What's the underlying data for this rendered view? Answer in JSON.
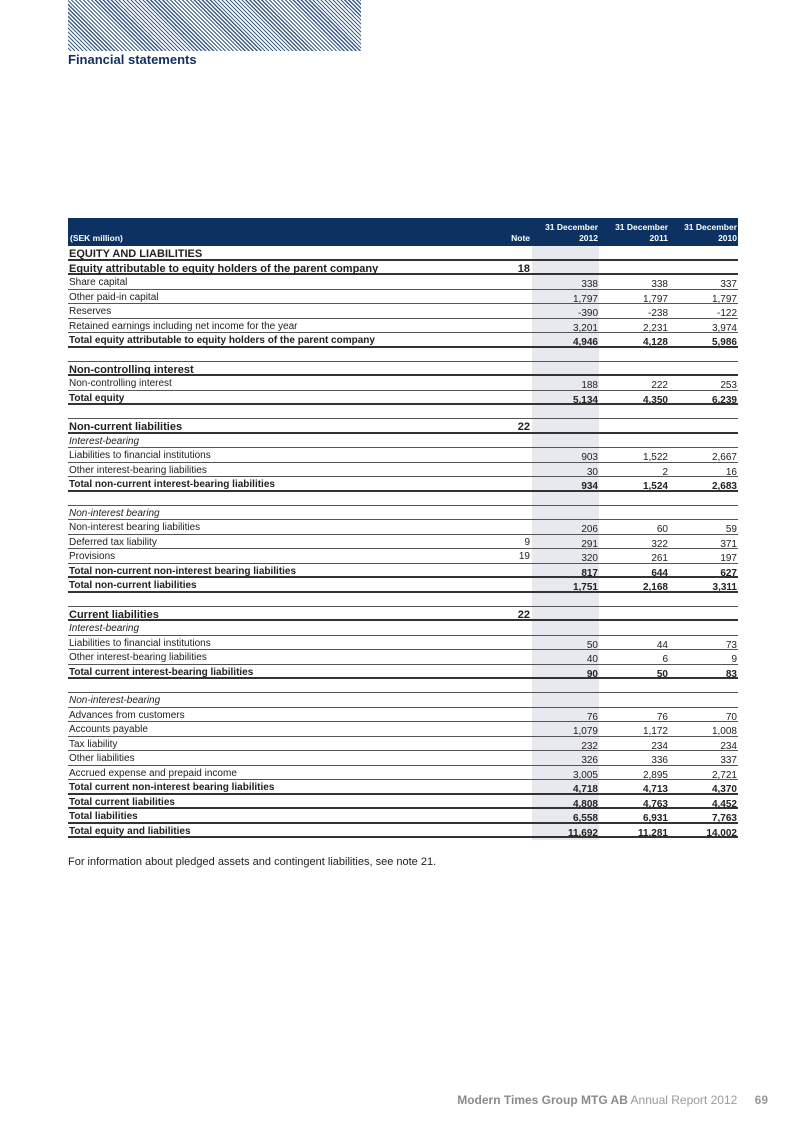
{
  "header": {
    "section_title": "Financial statements"
  },
  "table": {
    "columns": {
      "unit": "(SEK million)",
      "note": "Note",
      "c1_l1": "31 December",
      "c1_l2": "2012",
      "c2_l1": "31 December",
      "c2_l2": "2011",
      "c3_l1": "31 December",
      "c3_l2": "2010"
    },
    "rows": [
      {
        "type": "heading",
        "label": "EQUITY AND LIABILITIES",
        "note": "",
        "v": [
          "",
          "",
          ""
        ]
      },
      {
        "type": "heading",
        "label": "Equity attributable to equity holders of the parent company",
        "note": "18",
        "v": [
          "",
          "",
          ""
        ]
      },
      {
        "type": "normal",
        "label": "Share capital",
        "note": "",
        "v": [
          "338",
          "338",
          "337"
        ]
      },
      {
        "type": "normal",
        "label": "Other paid-in capital",
        "note": "",
        "v": [
          "1,797",
          "1,797",
          "1,797"
        ]
      },
      {
        "type": "normal",
        "label": "Reserves",
        "note": "",
        "v": [
          "-390",
          "-238",
          "-122"
        ]
      },
      {
        "type": "normal",
        "label": "Retained earnings including net income for the year",
        "note": "",
        "v": [
          "3,201",
          "2,231",
          "3,974"
        ]
      },
      {
        "type": "bold",
        "label": "Total equity attributable to equity holders of the parent company",
        "note": "",
        "v": [
          "4,946",
          "4,128",
          "5,986"
        ]
      },
      {
        "type": "blank",
        "label": "",
        "note": "",
        "v": [
          "",
          "",
          ""
        ]
      },
      {
        "type": "heading",
        "label": "Non-controlling interest",
        "note": "",
        "v": [
          "",
          "",
          ""
        ]
      },
      {
        "type": "normal",
        "label": "Non-controlling interest",
        "note": "",
        "v": [
          "188",
          "222",
          "253"
        ]
      },
      {
        "type": "bold",
        "label": "Total equity",
        "note": "",
        "v": [
          "5,134",
          "4,350",
          "6,239"
        ]
      },
      {
        "type": "blank",
        "label": "",
        "note": "",
        "v": [
          "",
          "",
          ""
        ]
      },
      {
        "type": "heading",
        "label": "Non-current liabilities",
        "note": "22",
        "v": [
          "",
          "",
          ""
        ]
      },
      {
        "type": "italic",
        "label": "Interest-bearing",
        "note": "",
        "v": [
          "",
          "",
          ""
        ]
      },
      {
        "type": "normal",
        "label": "Liabilities to financial institutions",
        "note": "",
        "v": [
          "903",
          "1,522",
          "2,667"
        ]
      },
      {
        "type": "normal",
        "label": "Other interest-bearing liabilities",
        "note": "",
        "v": [
          "30",
          "2",
          "16"
        ]
      },
      {
        "type": "bold",
        "label": "Total non-current interest-bearing liabilities",
        "note": "",
        "v": [
          "934",
          "1,524",
          "2,683"
        ]
      },
      {
        "type": "blank",
        "label": "",
        "note": "",
        "v": [
          "",
          "",
          ""
        ]
      },
      {
        "type": "italic",
        "label": "Non-interest bearing",
        "note": "",
        "v": [
          "",
          "",
          ""
        ]
      },
      {
        "type": "normal",
        "label": "Non-interest bearing liabilities",
        "note": "",
        "v": [
          "206",
          "60",
          "59"
        ]
      },
      {
        "type": "normal",
        "label": "Deferred tax liability",
        "note": "9",
        "v": [
          "291",
          "322",
          "371"
        ]
      },
      {
        "type": "normal",
        "label": "Provisions",
        "note": "19",
        "v": [
          "320",
          "261",
          "197"
        ]
      },
      {
        "type": "bold",
        "label": "Total non-current non-interest bearing liabilities",
        "note": "",
        "v": [
          "817",
          "644",
          "627"
        ]
      },
      {
        "type": "bold",
        "label": "Total non-current liabilities",
        "note": "",
        "v": [
          "1,751",
          "2,168",
          "3,311"
        ]
      },
      {
        "type": "blank",
        "label": "",
        "note": "",
        "v": [
          "",
          "",
          ""
        ]
      },
      {
        "type": "heading",
        "label": "Current liabilities",
        "note": "22",
        "v": [
          "",
          "",
          ""
        ]
      },
      {
        "type": "italic",
        "label": "Interest-bearing",
        "note": "",
        "v": [
          "",
          "",
          ""
        ]
      },
      {
        "type": "normal",
        "label": "Liabilities to financial institutions",
        "note": "",
        "v": [
          "50",
          "44",
          "73"
        ]
      },
      {
        "type": "normal",
        "label": "Other interest-bearing liabilities",
        "note": "",
        "v": [
          "40",
          "6",
          "9"
        ]
      },
      {
        "type": "bold",
        "label": "Total current interest-bearing liabilities",
        "note": "",
        "v": [
          "90",
          "50",
          "83"
        ]
      },
      {
        "type": "blank",
        "label": "",
        "note": "",
        "v": [
          "",
          "",
          ""
        ]
      },
      {
        "type": "italic",
        "label": "Non-interest-bearing",
        "note": "",
        "v": [
          "",
          "",
          ""
        ]
      },
      {
        "type": "normal",
        "label": "Advances from customers",
        "note": "",
        "v": [
          "76",
          "76",
          "70"
        ]
      },
      {
        "type": "normal",
        "label": "Accounts payable",
        "note": "",
        "v": [
          "1,079",
          "1,172",
          "1,008"
        ]
      },
      {
        "type": "normal",
        "label": "Tax liability",
        "note": "",
        "v": [
          "232",
          "234",
          "234"
        ]
      },
      {
        "type": "normal",
        "label": "Other liabilities",
        "note": "",
        "v": [
          "326",
          "336",
          "337"
        ]
      },
      {
        "type": "normal",
        "label": "Accrued expense and prepaid income",
        "note": "",
        "v": [
          "3,005",
          "2,895",
          "2,721"
        ]
      },
      {
        "type": "bold",
        "label": "Total current non-interest bearing liabilities",
        "note": "",
        "v": [
          "4,718",
          "4,713",
          "4,370"
        ]
      },
      {
        "type": "bold",
        "label": "Total current liabilities",
        "note": "",
        "v": [
          "4,808",
          "4,763",
          "4,452"
        ]
      },
      {
        "type": "bold",
        "label": "Total liabilities",
        "note": "",
        "v": [
          "6,558",
          "6,931",
          "7,763"
        ]
      },
      {
        "type": "bold",
        "label": "Total equity and liabilities",
        "note": "",
        "v": [
          "11,692",
          "11,281",
          "14,002"
        ]
      }
    ]
  },
  "footnote": "For information about pledged assets and contingent liabilities, see note 21.",
  "footer": {
    "company": "Modern Times Group MTG AB",
    "report": "Annual Report 2012",
    "page": "69"
  }
}
